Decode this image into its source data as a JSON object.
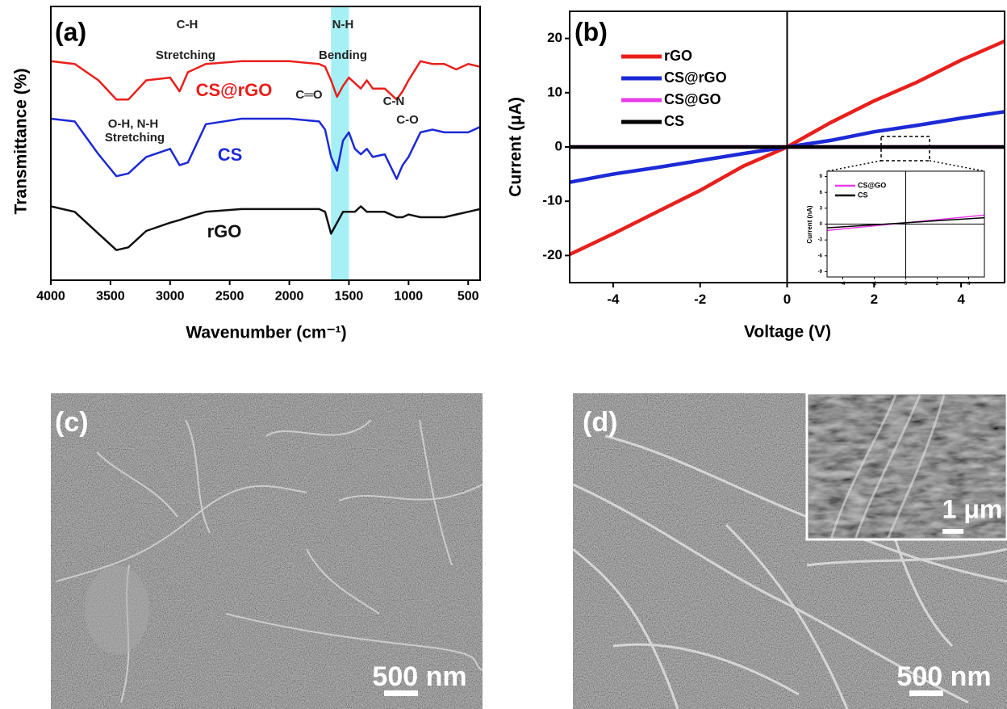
{
  "chart_data": [
    {
      "type": "line",
      "panel_label": "(a)",
      "ylabel": "Transmittance (%)",
      "xlabel": "Wavenumber (cm⁻¹)",
      "xlim": [
        4000,
        400
      ],
      "xticks": [
        4000,
        3500,
        3000,
        2500,
        2000,
        1500,
        1000,
        500
      ],
      "ylim": [
        0,
        100
      ],
      "highlight": [
        1650,
        1500
      ],
      "highlight_color": "#a6f0f5",
      "annotations": [
        "C-H",
        "Stretching",
        "N-H",
        "Bending",
        "C═O",
        "C-N",
        "C-O",
        "O-H, N-H",
        "Stretching"
      ],
      "x": [
        4000,
        3800,
        3600,
        3450,
        3350,
        3200,
        3000,
        2920,
        2850,
        2700,
        2400,
        2000,
        1750,
        1700,
        1650,
        1600,
        1550,
        1500,
        1450,
        1400,
        1350,
        1300,
        1200,
        1100,
        1050,
        1000,
        900,
        800,
        700,
        600,
        500,
        400
      ],
      "series": [
        {
          "name": "CS@rGO",
          "color": "#e8201c",
          "values": [
            80,
            79,
            73,
            66,
            66,
            73,
            74,
            69,
            76,
            79,
            80,
            80,
            79,
            78,
            73,
            67,
            71,
            74,
            72,
            70,
            73,
            70,
            70,
            66,
            69,
            73,
            80,
            79,
            79,
            77,
            79,
            78
          ]
        },
        {
          "name": "CS",
          "color": "#1c2ad6",
          "values": [
            59,
            58,
            46,
            38,
            39,
            45,
            48,
            42,
            43,
            57,
            59,
            59,
            58,
            55,
            45,
            40,
            51,
            54,
            48,
            46,
            48,
            45,
            46,
            37,
            42,
            45,
            54,
            55,
            54,
            54,
            54,
            56
          ]
        },
        {
          "name": "rGO",
          "color": "#111111",
          "values": [
            27,
            25,
            17,
            11,
            12,
            18,
            21,
            22,
            23,
            25,
            26,
            26,
            26,
            25,
            17,
            21,
            25,
            25,
            25,
            27,
            25,
            25,
            25,
            23,
            23,
            24,
            23,
            23,
            23,
            24,
            25,
            26
          ]
        }
      ]
    },
    {
      "type": "line",
      "panel_label": "(b)",
      "ylabel": "Current (μA)",
      "xlabel": "Voltage (V)",
      "xlim": [
        -5,
        5
      ],
      "xticks": [
        -4,
        -2,
        0,
        2,
        4
      ],
      "ylim": [
        -25,
        25
      ],
      "yticks": [
        -20,
        -10,
        0,
        10,
        20
      ],
      "zero_lines": true,
      "x": [
        -5,
        -4,
        -3,
        -2,
        -1,
        0,
        1,
        2,
        3,
        4,
        5
      ],
      "series": [
        {
          "name": "rGO",
          "color": "#e8201c",
          "values": [
            -19.8,
            -16,
            -12,
            -8,
            -3.5,
            0,
            4.5,
            8.5,
            12,
            16,
            19.5
          ]
        },
        {
          "name": "CS@rGO",
          "color": "#1c2ad6",
          "values": [
            -6.5,
            -5,
            -3.8,
            -2.5,
            -1.2,
            0,
            1.2,
            2.8,
            4,
            5.3,
            6.5
          ]
        },
        {
          "name": "CS@GO",
          "color": "#e83ce8",
          "values": [
            0,
            0,
            0,
            0,
            0,
            0,
            0,
            0,
            0,
            0,
            0
          ]
        },
        {
          "name": "CS",
          "color": "#000000",
          "values": [
            0,
            0,
            0,
            0,
            0,
            0,
            0,
            0,
            0,
            0,
            0
          ]
        }
      ]
    },
    {
      "type": "line",
      "ylabel": "Current (nA)",
      "xlim": [
        -5,
        5
      ],
      "xticks": [
        -4,
        -2,
        0,
        2,
        4
      ],
      "ylim": [
        -10,
        10
      ],
      "yticks": [
        -9,
        -6,
        -3,
        0,
        3,
        6,
        9
      ],
      "zero_lines": true,
      "x": [
        -5,
        5
      ],
      "series": [
        {
          "name": "CS@GO",
          "color": "#e83ce8",
          "values": [
            -1.2,
            1.7
          ]
        },
        {
          "name": "CS",
          "color": "#000000",
          "values": [
            -0.7,
            1.2
          ]
        }
      ]
    }
  ],
  "images": [
    {
      "label": "(c)",
      "scale_bar": "500 nm"
    },
    {
      "label": "(d)",
      "scale_bar": "500 nm",
      "inset_scale_bar": "1 μm"
    }
  ]
}
